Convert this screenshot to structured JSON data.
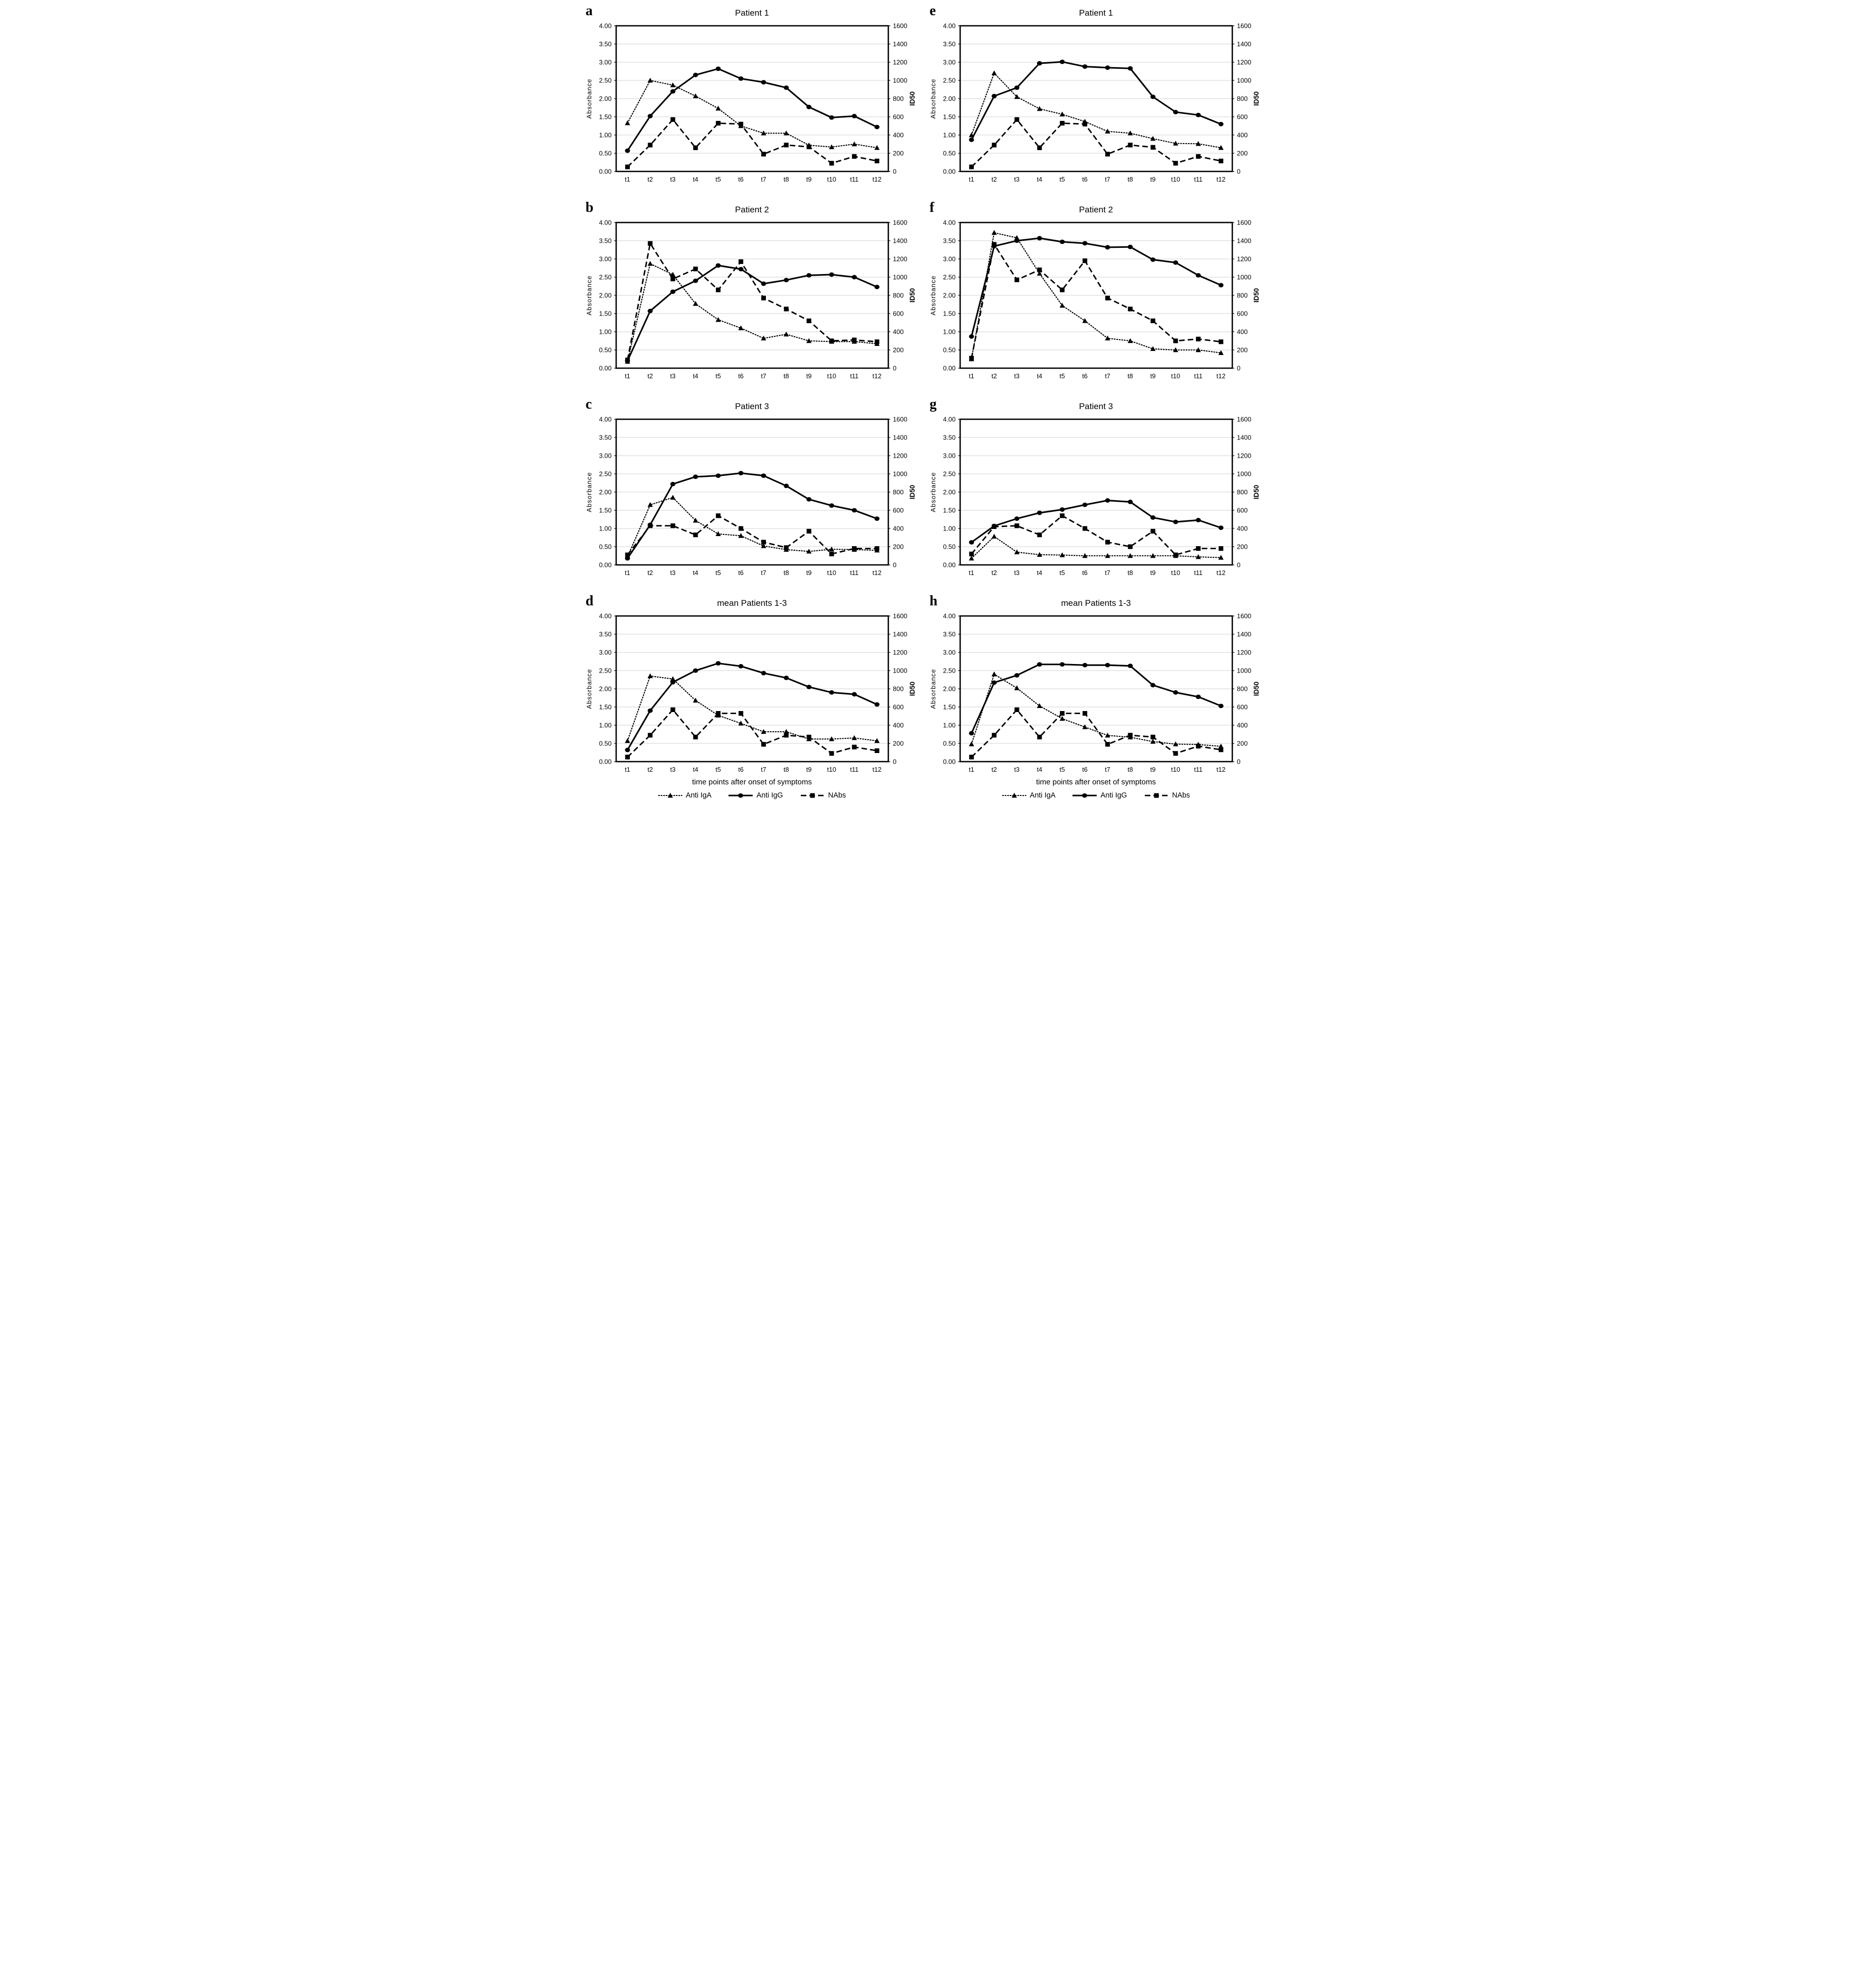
{
  "figure": {
    "background": "#ffffff",
    "series_color": "#000000",
    "gridline_color": "#d9d9d9",
    "frame_color": "#000000"
  },
  "axes": {
    "left_label": "Absorbance",
    "right_label": "ID50",
    "x_title": "time points after onset of symptoms",
    "left_ticks": [
      "0.00",
      "0.50",
      "1.00",
      "1.50",
      "2.00",
      "2.50",
      "3.00",
      "3.50",
      "4.00"
    ],
    "right_ticks": [
      "0",
      "200",
      "400",
      "600",
      "800",
      "1000",
      "1200",
      "1400",
      "1600"
    ],
    "x_ticks": [
      "t1",
      "t2",
      "t3",
      "t4",
      "t5",
      "t6",
      "t7",
      "t8",
      "t9",
      "t10",
      "t11",
      "t12"
    ],
    "left_range": [
      0,
      4
    ],
    "right_range": [
      0,
      1600
    ],
    "grid": "horizontal"
  },
  "legend": [
    {
      "label": "Anti IgA",
      "marker": "triangle",
      "line": "dotted"
    },
    {
      "label": "Anti IgG",
      "marker": "circle",
      "line": "solid"
    },
    {
      "label": "NAbs",
      "marker": "square",
      "line": "dashed"
    }
  ],
  "chart_data": [
    {
      "panel": "a",
      "title": "Patient 1",
      "type": "line",
      "x": [
        "t1",
        "t2",
        "t3",
        "t4",
        "t5",
        "t6",
        "t7",
        "t8",
        "t9",
        "t10",
        "t11",
        "t12"
      ],
      "ylabel": "Absorbance",
      "y2label": "ID50",
      "ylim": [
        0,
        4
      ],
      "y2lim": [
        0,
        1600
      ],
      "has_x_title": false,
      "has_legend": false,
      "series": [
        {
          "name": "Anti IgA",
          "axis": "left",
          "marker": "triangle",
          "line": "dotted",
          "values": [
            1.33,
            2.5,
            2.37,
            2.07,
            1.73,
            1.25,
            1.05,
            1.05,
            0.72,
            0.67,
            0.75,
            0.65
          ]
        },
        {
          "name": "Anti IgG",
          "axis": "left",
          "marker": "circle",
          "line": "solid",
          "values": [
            0.57,
            1.52,
            2.2,
            2.65,
            2.82,
            2.55,
            2.45,
            2.3,
            1.77,
            1.48,
            1.52,
            1.22
          ]
        },
        {
          "name": "NAbs",
          "axis": "right",
          "marker": "square",
          "line": "dashed",
          "values": [
            50,
            290,
            570,
            260,
            530,
            520,
            190,
            290,
            270,
            90,
            165,
            115
          ]
        }
      ]
    },
    {
      "panel": "e",
      "title": "Patient 1",
      "type": "line",
      "x": [
        "t1",
        "t2",
        "t3",
        "t4",
        "t5",
        "t6",
        "t7",
        "t8",
        "t9",
        "t10",
        "t11",
        "t12"
      ],
      "ylabel": "Absorbance",
      "y2label": "ID50",
      "ylim": [
        0,
        4
      ],
      "y2lim": [
        0,
        1600
      ],
      "has_x_title": false,
      "has_legend": false,
      "series": [
        {
          "name": "Anti IgA",
          "axis": "left",
          "marker": "triangle",
          "line": "dotted",
          "values": [
            1.0,
            2.7,
            2.05,
            1.72,
            1.57,
            1.37,
            1.1,
            1.05,
            0.9,
            0.77,
            0.76,
            0.65
          ]
        },
        {
          "name": "Anti IgG",
          "axis": "left",
          "marker": "circle",
          "line": "solid",
          "values": [
            0.87,
            2.07,
            2.3,
            2.97,
            3.01,
            2.88,
            2.85,
            2.83,
            2.05,
            1.63,
            1.55,
            1.3
          ]
        },
        {
          "name": "NAbs",
          "axis": "right",
          "marker": "square",
          "line": "dashed",
          "values": [
            50,
            290,
            570,
            260,
            530,
            520,
            190,
            290,
            265,
            90,
            165,
            115
          ]
        }
      ]
    },
    {
      "panel": "b",
      "title": "Patient 2",
      "type": "line",
      "x": [
        "t1",
        "t2",
        "t3",
        "t4",
        "t5",
        "t6",
        "t7",
        "t8",
        "t9",
        "t10",
        "t11",
        "t12"
      ],
      "ylabel": "Absorbance",
      "y2label": "ID50",
      "ylim": [
        0,
        4
      ],
      "y2lim": [
        0,
        1600
      ],
      "has_x_title": false,
      "has_legend": false,
      "series": [
        {
          "name": "Anti IgA",
          "axis": "left",
          "marker": "triangle",
          "line": "dotted",
          "values": [
            0.18,
            2.87,
            2.57,
            1.77,
            1.33,
            1.1,
            0.82,
            0.93,
            0.75,
            0.73,
            0.73,
            0.67
          ]
        },
        {
          "name": "Anti IgG",
          "axis": "left",
          "marker": "circle",
          "line": "solid",
          "values": [
            0.2,
            1.57,
            2.1,
            2.4,
            2.82,
            2.72,
            2.32,
            2.42,
            2.55,
            2.57,
            2.5,
            2.23
          ]
        },
        {
          "name": "NAbs",
          "axis": "right",
          "marker": "square",
          "line": "dashed",
          "values": [
            90,
            1370,
            980,
            1090,
            860,
            1170,
            770,
            650,
            520,
            300,
            310,
            290
          ]
        }
      ]
    },
    {
      "panel": "f",
      "title": "Patient 2",
      "type": "line",
      "x": [
        "t1",
        "t2",
        "t3",
        "t4",
        "t5",
        "t6",
        "t7",
        "t8",
        "t9",
        "t10",
        "t11",
        "t12"
      ],
      "ylabel": "Absorbance",
      "y2label": "ID50",
      "ylim": [
        0,
        4
      ],
      "y2lim": [
        0,
        1600
      ],
      "has_x_title": false,
      "has_legend": false,
      "series": [
        {
          "name": "Anti IgA",
          "axis": "left",
          "marker": "triangle",
          "line": "dotted",
          "values": [
            0.25,
            3.72,
            3.58,
            2.6,
            1.72,
            1.3,
            0.82,
            0.75,
            0.53,
            0.5,
            0.5,
            0.42
          ]
        },
        {
          "name": "Anti IgG",
          "axis": "left",
          "marker": "circle",
          "line": "solid",
          "values": [
            0.87,
            3.35,
            3.5,
            3.57,
            3.47,
            3.43,
            3.32,
            3.33,
            2.98,
            2.9,
            2.55,
            2.28
          ]
        },
        {
          "name": "NAbs",
          "axis": "right",
          "marker": "square",
          "line": "dashed",
          "values": [
            110,
            1360,
            970,
            1080,
            860,
            1180,
            770,
            650,
            520,
            300,
            320,
            290
          ]
        }
      ]
    },
    {
      "panel": "c",
      "title": "Patient 3",
      "type": "line",
      "x": [
        "t1",
        "t2",
        "t3",
        "t4",
        "t5",
        "t6",
        "t7",
        "t8",
        "t9",
        "t10",
        "t11",
        "t12"
      ],
      "ylabel": "Absorbance",
      "y2label": "ID50",
      "ylim": [
        0,
        4
      ],
      "y2lim": [
        0,
        1600
      ],
      "has_x_title": false,
      "has_legend": false,
      "series": [
        {
          "name": "Anti IgA",
          "axis": "left",
          "marker": "triangle",
          "line": "dotted",
          "values": [
            0.22,
            1.65,
            1.85,
            1.22,
            0.85,
            0.8,
            0.52,
            0.42,
            0.37,
            0.43,
            0.42,
            0.4
          ]
        },
        {
          "name": "Anti IgG",
          "axis": "left",
          "marker": "circle",
          "line": "solid",
          "values": [
            0.18,
            1.1,
            2.22,
            2.42,
            2.45,
            2.52,
            2.45,
            2.17,
            1.8,
            1.63,
            1.5,
            1.27
          ]
        },
        {
          "name": "NAbs",
          "axis": "right",
          "marker": "square",
          "line": "dashed",
          "values": [
            110,
            430,
            430,
            330,
            540,
            400,
            250,
            190,
            370,
            120,
            180,
            180
          ]
        }
      ]
    },
    {
      "panel": "g",
      "title": "Patient 3",
      "type": "line",
      "x": [
        "t1",
        "t2",
        "t3",
        "t4",
        "t5",
        "t6",
        "t7",
        "t8",
        "t9",
        "t10",
        "t11",
        "t12"
      ],
      "ylabel": "Absorbance",
      "y2label": "ID50",
      "ylim": [
        0,
        4
      ],
      "y2lim": [
        0,
        1600
      ],
      "has_x_title": false,
      "has_legend": false,
      "series": [
        {
          "name": "Anti IgA",
          "axis": "left",
          "marker": "triangle",
          "line": "dotted",
          "values": [
            0.18,
            0.78,
            0.35,
            0.28,
            0.27,
            0.25,
            0.25,
            0.25,
            0.25,
            0.25,
            0.22,
            0.2
          ]
        },
        {
          "name": "Anti IgG",
          "axis": "left",
          "marker": "circle",
          "line": "solid",
          "values": [
            0.62,
            1.07,
            1.27,
            1.43,
            1.52,
            1.65,
            1.77,
            1.73,
            1.3,
            1.18,
            1.23,
            1.02
          ]
        },
        {
          "name": "NAbs",
          "axis": "right",
          "marker": "square",
          "line": "dashed",
          "values": [
            120,
            420,
            430,
            330,
            540,
            400,
            250,
            200,
            370,
            110,
            180,
            180
          ]
        }
      ]
    },
    {
      "panel": "d",
      "title": "mean Patients 1-3",
      "type": "line",
      "x": [
        "t1",
        "t2",
        "t3",
        "t4",
        "t5",
        "t6",
        "t7",
        "t8",
        "t9",
        "t10",
        "t11",
        "t12"
      ],
      "ylabel": "Absorbance",
      "y2label": "ID50",
      "ylim": [
        0,
        4
      ],
      "y2lim": [
        0,
        1600
      ],
      "has_x_title": true,
      "has_legend": true,
      "series": [
        {
          "name": "Anti IgA",
          "axis": "left",
          "marker": "triangle",
          "line": "dotted",
          "values": [
            0.57,
            2.35,
            2.27,
            1.68,
            1.27,
            1.05,
            0.82,
            0.82,
            0.62,
            0.62,
            0.65,
            0.57
          ]
        },
        {
          "name": "Anti IgG",
          "axis": "left",
          "marker": "circle",
          "line": "solid",
          "values": [
            0.32,
            1.4,
            2.18,
            2.5,
            2.7,
            2.62,
            2.43,
            2.3,
            2.05,
            1.9,
            1.85,
            1.57
          ]
        },
        {
          "name": "NAbs",
          "axis": "right",
          "marker": "square",
          "line": "dashed",
          "values": [
            50,
            290,
            570,
            270,
            530,
            530,
            190,
            290,
            270,
            90,
            160,
            120
          ]
        }
      ]
    },
    {
      "panel": "h",
      "title": "mean Patients 1-3",
      "type": "line",
      "x": [
        "t1",
        "t2",
        "t3",
        "t4",
        "t5",
        "t6",
        "t7",
        "t8",
        "t9",
        "t10",
        "t11",
        "t12"
      ],
      "ylabel": "Absorbance",
      "y2label": "ID50",
      "ylim": [
        0,
        4
      ],
      "y2lim": [
        0,
        1600
      ],
      "has_x_title": true,
      "has_legend": true,
      "series": [
        {
          "name": "Anti IgA",
          "axis": "left",
          "marker": "triangle",
          "line": "dotted",
          "values": [
            0.48,
            2.4,
            2.02,
            1.53,
            1.18,
            0.95,
            0.72,
            0.67,
            0.55,
            0.48,
            0.47,
            0.42
          ]
        },
        {
          "name": "Anti IgG",
          "axis": "left",
          "marker": "circle",
          "line": "solid",
          "values": [
            0.78,
            2.17,
            2.37,
            2.67,
            2.67,
            2.65,
            2.65,
            2.63,
            2.1,
            1.9,
            1.78,
            1.53
          ]
        },
        {
          "name": "NAbs",
          "axis": "right",
          "marker": "square",
          "line": "dashed",
          "values": [
            50,
            290,
            570,
            270,
            530,
            530,
            190,
            290,
            270,
            90,
            170,
            130
          ]
        }
      ]
    }
  ]
}
